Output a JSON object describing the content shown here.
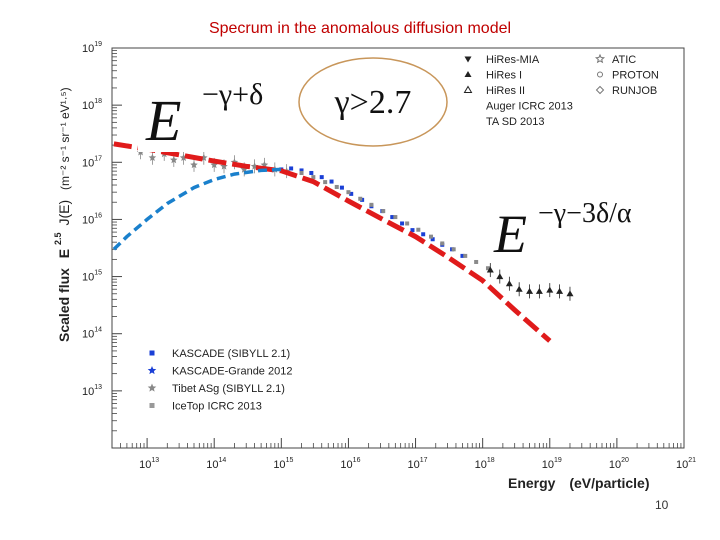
{
  "slide": {
    "title": "Specrum in the anomalous diffusion model",
    "number": "10"
  },
  "annotations": {
    "formula_left_base": "E",
    "formula_left_exp": "−γ+δ",
    "condition": "γ>2.7",
    "formula_right_base": "E",
    "formula_right_exp": "−γ−3δ/α",
    "oval_color": "#c8965a"
  },
  "chart_data": {
    "type": "scatter",
    "title": "",
    "xlabel": "Energy (eV/particle)",
    "xlabel_main": "Energy",
    "xlabel_unit": "(eV/particle)",
    "ylabel": "Scaled flux E^2.5 J(E) (m^-2 s^-1 sr^-1 eV^1.5)",
    "ylabel_main": "Scaled flux",
    "ylabel_unit": "(m⁻² s⁻¹ sr⁻¹ eV¹·⁵)",
    "ylabel_func": "J(E)",
    "ylabel_e": "E",
    "ylabel_exp": "2.5",
    "x_scale": "log",
    "y_scale": "log",
    "xlim": [
      3000000000000.0,
      1e+21
    ],
    "ylim": [
      1000000000000.0,
      1e+19
    ],
    "x_ticks": [
      {
        "base": "10",
        "exp": "13",
        "value": 10000000000000.0
      },
      {
        "base": "10",
        "exp": "14",
        "value": 100000000000000.0
      },
      {
        "base": "10",
        "exp": "15",
        "value": 1000000000000000.0
      },
      {
        "base": "10",
        "exp": "16",
        "value": 1e+16
      },
      {
        "base": "10",
        "exp": "17",
        "value": 1e+17
      },
      {
        "base": "10",
        "exp": "18",
        "value": 1e+18
      },
      {
        "base": "10",
        "exp": "19",
        "value": 1e+19
      },
      {
        "base": "10",
        "exp": "20",
        "value": 1e+20
      },
      {
        "base": "10",
        "exp": "21",
        "value": 1e+21
      }
    ],
    "y_ticks": [
      {
        "base": "10",
        "exp": "13",
        "value": 10000000000000.0
      },
      {
        "base": "10",
        "exp": "14",
        "value": 100000000000000.0
      },
      {
        "base": "10",
        "exp": "15",
        "value": 1000000000000000.0
      },
      {
        "base": "10",
        "exp": "16",
        "value": 1e+16
      },
      {
        "base": "10",
        "exp": "17",
        "value": 1e+17
      },
      {
        "base": "10",
        "exp": "18",
        "value": 1e+18
      },
      {
        "base": "10",
        "exp": "19",
        "value": 1e+19
      }
    ],
    "legend_top": [
      {
        "label": "HiRes-MIA",
        "marker": "tri-down",
        "color": "#222222"
      },
      {
        "label": "HiRes I",
        "marker": "tri-up",
        "color": "#222222"
      },
      {
        "label": "HiRes II",
        "marker": "tri-up-open",
        "color": "#222222"
      },
      {
        "label": "Auger ICRC 2013",
        "marker": "none",
        "color": "#222222"
      },
      {
        "label": "TA SD 2013",
        "marker": "none",
        "color": "#222222"
      },
      {
        "label": "ATIC",
        "marker": "star-open",
        "color": "#777777"
      },
      {
        "label": "PROTON",
        "marker": "circle-open",
        "color": "#777777"
      },
      {
        "label": "RUNJOB",
        "marker": "diamond-open",
        "color": "#777777"
      }
    ],
    "legend_bottom": [
      {
        "label": "KASCADE (SIBYLL 2.1)",
        "marker": "square",
        "color": "#1a3fd6"
      },
      {
        "label": "KASCADE-Grande 2012",
        "marker": "star",
        "color": "#1a3fd6"
      },
      {
        "label": "Tibet ASg (SIBYLL 2.1)",
        "marker": "star",
        "color": "#888888"
      },
      {
        "label": "IceTop ICRC 2013",
        "marker": "square",
        "color": "#999999"
      }
    ],
    "curves": [
      {
        "style": "dashed",
        "color": "#e01b1b",
        "x": [
          3200000000000.0,
          10000000000000.0,
          30000000000000.0,
          100000000000000.0,
          300000000000000.0,
          1000000000000000.0,
          3000000000000000.0,
          1e+16,
          3e+16,
          1e+17,
          3e+17,
          1e+18,
          3e+18,
          1e+19
        ],
        "y": [
          2.1e+17,
          1.7e+17,
          1.35e+17,
          1.05e+17,
          8.5e+16,
          7.1e+16,
          4.6e+16,
          2.1e+16,
          1.05e+16,
          5000000000000000.0,
          2200000000000000.0,
          850000000000000.0,
          260000000000000.0,
          75000000000000.0
        ]
      },
      {
        "style": "dashed",
        "color": "#1a80cc",
        "x": [
          3200000000000.0,
          5000000000000.0,
          10000000000000.0,
          20000000000000.0,
          50000000000000.0,
          100000000000000.0,
          200000000000000.0,
          500000000000000.0,
          1000000000000000.0
        ],
        "y": [
          3000000000000000.0,
          5000000000000000.0,
          1e+16,
          1.9e+16,
          3.6e+16,
          5e+16,
          6.2e+16,
          7.2e+16,
          7.5e+16
        ]
      }
    ],
    "series": [
      {
        "name": "ATIC / PROTON / RUNJOB / Tibet ASg",
        "color": "#888888",
        "marker": "star",
        "x": [
          8000000000000.0,
          12000000000000.0,
          18000000000000.0,
          25000000000000.0,
          35000000000000.0,
          50000000000000.0,
          70000000000000.0,
          100000000000000.0,
          140000000000000.0,
          200000000000000.0,
          280000000000000.0,
          400000000000000.0,
          560000000000000.0,
          800000000000000.0,
          1200000000000000.0
        ],
        "y": [
          1.5e+17,
          1.2e+17,
          1.4e+17,
          1.1e+17,
          1.2e+17,
          9e+16,
          1.2e+17,
          9e+16,
          8.5e+16,
          1e+17,
          7.5e+16,
          8.5e+16,
          9e+16,
          7.5e+16,
          7e+16
        ]
      },
      {
        "name": "KASCADE / KASCADE-Grande",
        "color": "#1a3fd6",
        "marker": "square",
        "x": [
          1000000000000000.0,
          1400000000000000.0,
          2000000000000000.0,
          2800000000000000.0,
          4000000000000000.0,
          5600000000000000.0,
          8000000000000000.0,
          1.1e+16,
          1.6e+16,
          2.2e+16,
          3.2e+16,
          4.5e+16,
          6.3e+16,
          9e+16,
          1.3e+17,
          1.8e+17,
          2.5e+17,
          3.5e+17,
          5e+17
        ],
        "y": [
          7.5e+16,
          7.8e+16,
          7.2e+16,
          6.5e+16,
          5.5e+16,
          4.6e+16,
          3.6e+16,
          2.8e+16,
          2.2e+16,
          1.7e+16,
          1.4e+16,
          1.1e+16,
          8500000000000000.0,
          6500000000000000.0,
          5500000000000000.0,
          4500000000000000.0,
          3600000000000000.0,
          3000000000000000.0,
          2300000000000000.0
        ]
      },
      {
        "name": "IceTop / Tibet / TA (high energy)",
        "color": "#8a8a8a",
        "marker": "square",
        "x": [
          2000000000000000.0,
          3000000000000000.0,
          4500000000000000.0,
          6700000000000000.0,
          1e+16,
          1.5e+16,
          2.2e+16,
          3.3e+16,
          5e+16,
          7.5e+16,
          1.1e+17,
          1.7e+17,
          2.5e+17,
          3.7e+17,
          5.5e+17,
          8e+17,
          1.2e+18
        ],
        "y": [
          6.5e+16,
          5.5e+16,
          4.5e+16,
          3.7e+16,
          3e+16,
          2.3e+16,
          1.8e+16,
          1.4e+16,
          1.1e+16,
          8500000000000000.0,
          6600000000000000.0,
          5000000000000000.0,
          3800000000000000.0,
          3000000000000000.0,
          2300000000000000.0,
          1800000000000000.0,
          1400000000000000.0
        ]
      },
      {
        "name": "HiRes / Auger / TA",
        "color": "#222222",
        "marker": "triangle",
        "x": [
          1.3e+18,
          1.8e+18,
          2.5e+18,
          3.5e+18,
          5e+18,
          7e+18,
          1e+19,
          1.4e+19,
          2e+19
        ],
        "y": [
          1300000000000000.0,
          1000000000000000.0,
          750000000000000.0,
          600000000000000.0,
          550000000000000.0,
          550000000000000.0,
          580000000000000.0,
          550000000000000.0,
          500000000000000.0
        ]
      }
    ]
  }
}
